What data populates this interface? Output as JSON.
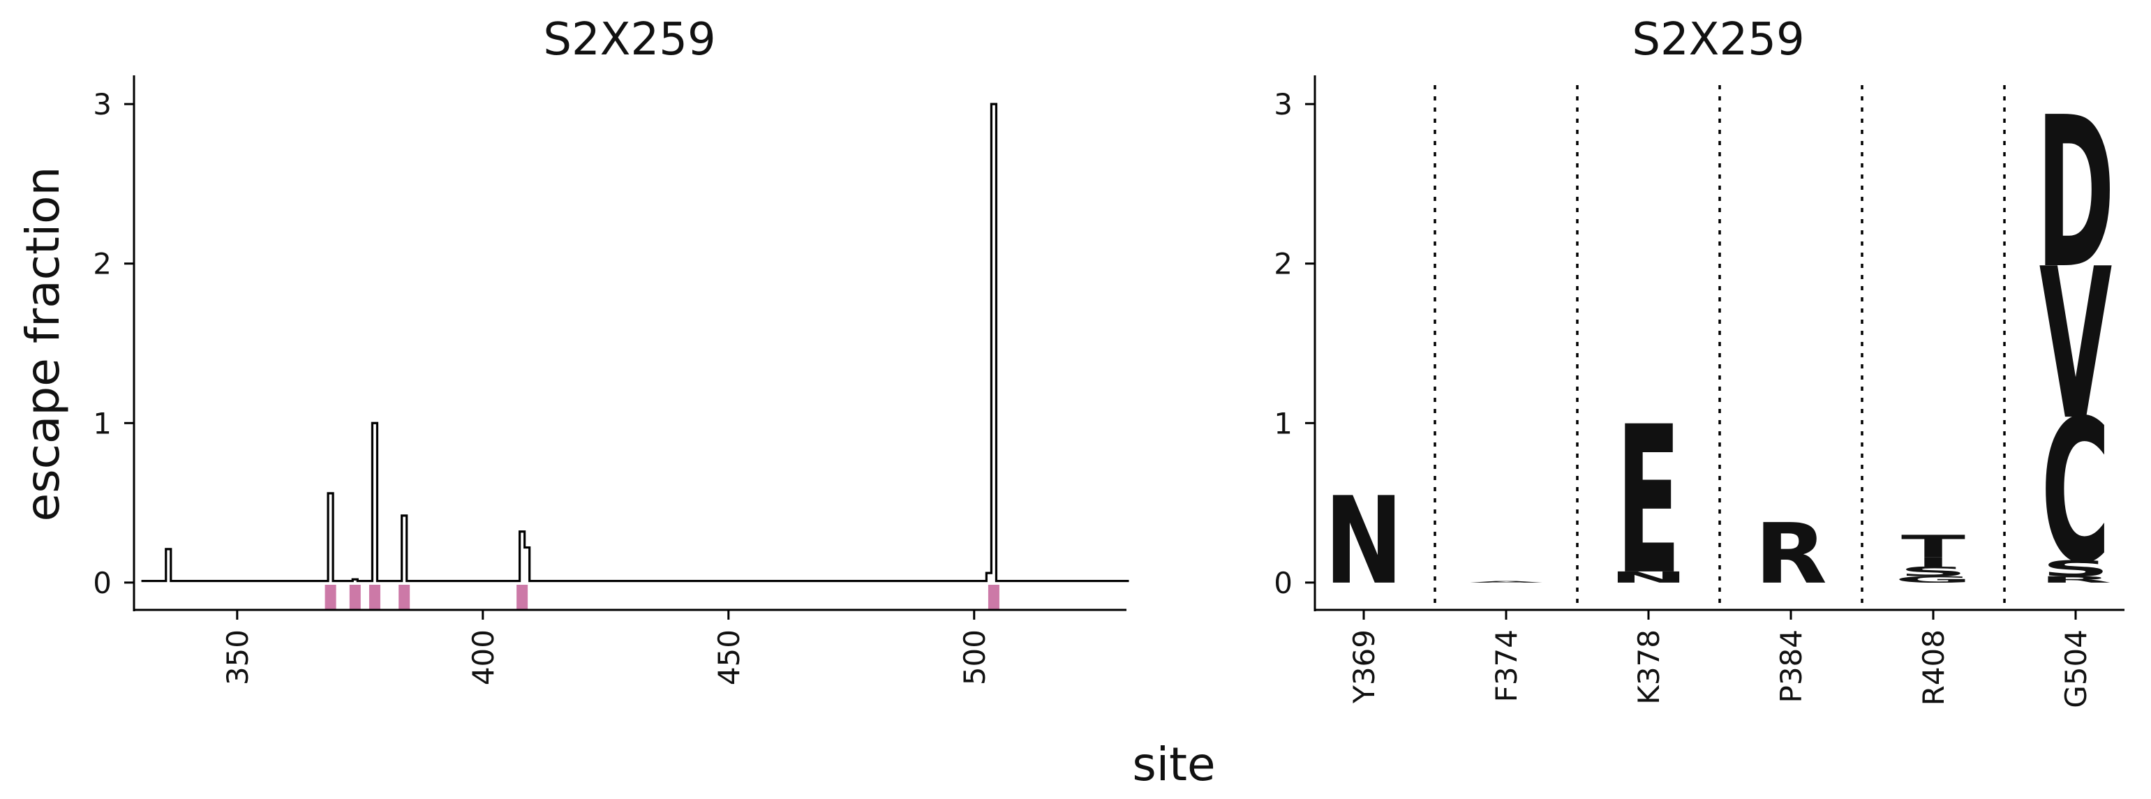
{
  "colors": {
    "line": "#000000",
    "site_marker": "#CC79A7",
    "orange": "#E69F00",
    "blue": "#56B4E9"
  },
  "figure": {
    "xlabel": "site"
  },
  "chart_data": [
    {
      "type": "line",
      "title": "S2X259",
      "xlabel": "",
      "ylabel": "escape fraction",
      "xlim": [
        329,
        531
      ],
      "ylim": [
        -0.18,
        3.18
      ],
      "xticks": [
        350,
        400,
        450,
        500
      ],
      "yticks": [
        0,
        1,
        2,
        3
      ],
      "x_start": 331,
      "x_end": 531,
      "baseline": 0.01,
      "peaks": [
        {
          "x": 336,
          "y": 0.21
        },
        {
          "x": 369,
          "y": 0.56
        },
        {
          "x": 374,
          "y": 0.02
        },
        {
          "x": 378,
          "y": 1.0
        },
        {
          "x": 384,
          "y": 0.42
        },
        {
          "x": 408,
          "y": 0.32
        },
        {
          "x": 409,
          "y": 0.22
        },
        {
          "x": 503,
          "y": 0.06
        },
        {
          "x": 504,
          "y": 3.0
        }
      ],
      "highlighted_sites": [
        369,
        374,
        378,
        384,
        408,
        504
      ]
    },
    {
      "type": "logo",
      "title": "S2X259",
      "ylabel": "",
      "ylim": [
        -0.18,
        3.18
      ],
      "yticks": [
        0,
        1,
        2,
        3
      ],
      "sites": [
        {
          "label": "Y369",
          "letters": [
            {
              "aa": "N",
              "height": 0.55,
              "color": "#E69F00"
            }
          ]
        },
        {
          "label": "F374",
          "letters": [
            {
              "aa": "A",
              "height": 0.01,
              "color": "#E69F00"
            }
          ]
        },
        {
          "label": "K378",
          "letters": [
            {
              "aa": "N",
              "height": 0.07,
              "color": "#E69F00"
            },
            {
              "aa": "E",
              "height": 0.93,
              "color": "#E69F00"
            }
          ]
        },
        {
          "label": "P384",
          "letters": [
            {
              "aa": "R",
              "height": 0.38,
              "color": "#E69F00"
            }
          ]
        },
        {
          "label": "R408",
          "letters": [
            {
              "aa": "G",
              "height": 0.04,
              "color": "#E69F00"
            },
            {
              "aa": "S",
              "height": 0.06,
              "color": "#E69F00"
            },
            {
              "aa": "I",
              "height": 0.06,
              "color": "#E69F00"
            },
            {
              "aa": "T",
              "height": 0.14,
              "color": "#E69F00"
            }
          ]
        },
        {
          "label": "G504",
          "letters": [
            {
              "aa": "R",
              "height": 0.04,
              "color": "#56B4E9"
            },
            {
              "aa": "S",
              "height": 0.1,
              "color": "#56B4E9"
            },
            {
              "aa": "C",
              "height": 0.9,
              "color": "#56B4E9"
            },
            {
              "aa": "V",
              "height": 0.95,
              "color": "#56B4E9"
            },
            {
              "aa": "D",
              "height": 0.95,
              "color": "#56B4E9"
            }
          ]
        }
      ]
    }
  ]
}
